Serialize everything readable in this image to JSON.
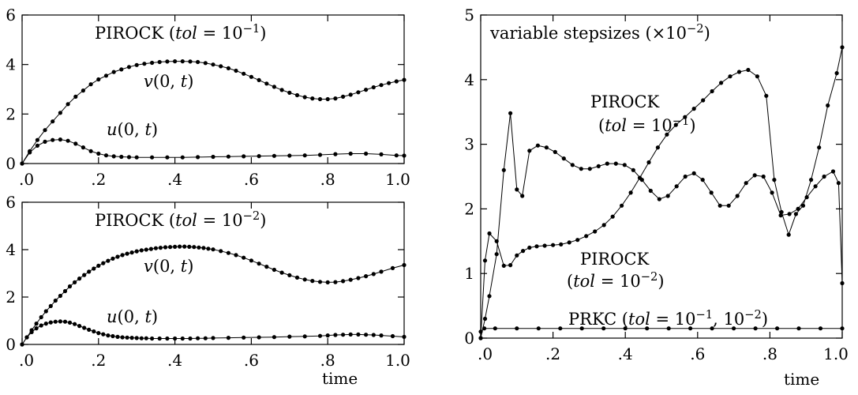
{
  "chart_data": [
    {
      "type": "line",
      "title": "PIROCK (tol = 10^-1)",
      "title_parts": [
        "PIROCK (",
        "tol",
        " = 10",
        "−1",
        ")"
      ],
      "x_ticks": [
        ".0",
        ".2",
        ".4",
        ".6",
        ".8",
        "1.0"
      ],
      "x_tick_values": [
        0,
        0.2,
        0.4,
        0.6,
        0.8,
        1.0
      ],
      "y_ticks": [
        "0",
        "2",
        "4",
        "6"
      ],
      "y_tick_values": [
        0,
        2,
        4,
        6
      ],
      "xlim": [
        0,
        1
      ],
      "ylim": [
        0,
        6
      ],
      "grid": false,
      "series": [
        {
          "name": "v(0, t)",
          "label_parts": [
            "v",
            "(0, ",
            "t",
            ")"
          ],
          "x": [
            0,
            0.02,
            0.04,
            0.06,
            0.08,
            0.1,
            0.12,
            0.14,
            0.16,
            0.18,
            0.2,
            0.22,
            0.24,
            0.26,
            0.28,
            0.3,
            0.32,
            0.34,
            0.36,
            0.38,
            0.4,
            0.42,
            0.44,
            0.46,
            0.48,
            0.5,
            0.52,
            0.54,
            0.56,
            0.58,
            0.6,
            0.62,
            0.64,
            0.66,
            0.68,
            0.7,
            0.72,
            0.74,
            0.76,
            0.78,
            0.8,
            0.82,
            0.84,
            0.86,
            0.88,
            0.9,
            0.92,
            0.94,
            0.96,
            0.98,
            1.0
          ],
          "y": [
            0,
            0.5,
            0.95,
            1.35,
            1.7,
            2.05,
            2.4,
            2.7,
            2.95,
            3.2,
            3.4,
            3.55,
            3.7,
            3.8,
            3.9,
            3.98,
            4.03,
            4.07,
            4.1,
            4.12,
            4.13,
            4.13,
            4.12,
            4.1,
            4.06,
            4.0,
            3.93,
            3.85,
            3.75,
            3.63,
            3.5,
            3.37,
            3.23,
            3.1,
            2.97,
            2.86,
            2.76,
            2.68,
            2.63,
            2.6,
            2.6,
            2.63,
            2.7,
            2.78,
            2.88,
            2.98,
            3.08,
            3.17,
            3.25,
            3.32,
            3.38
          ]
        },
        {
          "name": "u(0, t)",
          "label_parts": [
            "u",
            "(0, ",
            "t",
            ")"
          ],
          "x": [
            0,
            0.02,
            0.04,
            0.06,
            0.08,
            0.1,
            0.12,
            0.14,
            0.16,
            0.18,
            0.2,
            0.22,
            0.24,
            0.26,
            0.28,
            0.3,
            0.34,
            0.38,
            0.42,
            0.46,
            0.5,
            0.54,
            0.58,
            0.62,
            0.66,
            0.7,
            0.74,
            0.78,
            0.82,
            0.86,
            0.9,
            0.94,
            0.98,
            1.0
          ],
          "y": [
            0,
            0.45,
            0.72,
            0.88,
            0.95,
            0.97,
            0.92,
            0.8,
            0.65,
            0.5,
            0.4,
            0.33,
            0.29,
            0.27,
            0.26,
            0.25,
            0.25,
            0.25,
            0.25,
            0.26,
            0.27,
            0.28,
            0.29,
            0.3,
            0.31,
            0.32,
            0.33,
            0.35,
            0.38,
            0.4,
            0.4,
            0.37,
            0.33,
            0.32
          ]
        }
      ]
    },
    {
      "type": "line",
      "title": "PIROCK (tol = 10^-2)",
      "title_parts": [
        "PIROCK (",
        "tol",
        " = 10",
        "−2",
        ")"
      ],
      "xlabel": "time",
      "x_ticks": [
        ".0",
        ".2",
        ".4",
        ".6",
        ".8",
        "1.0"
      ],
      "x_tick_values": [
        0,
        0.2,
        0.4,
        0.6,
        0.8,
        1.0
      ],
      "y_ticks": [
        "0",
        "2",
        "4",
        "6"
      ],
      "y_tick_values": [
        0,
        2,
        4,
        6
      ],
      "xlim": [
        0,
        1
      ],
      "ylim": [
        0,
        6
      ],
      "grid": false,
      "series": [
        {
          "name": "v(0, t)",
          "label_parts": [
            "v",
            "(0, ",
            "t",
            ")"
          ],
          "x": [
            0,
            0.0125,
            0.025,
            0.0375,
            0.05,
            0.0625,
            0.075,
            0.0875,
            0.1,
            0.1125,
            0.125,
            0.1375,
            0.15,
            0.1625,
            0.175,
            0.1875,
            0.2,
            0.2125,
            0.225,
            0.2375,
            0.25,
            0.2625,
            0.275,
            0.2875,
            0.3,
            0.3125,
            0.325,
            0.3375,
            0.35,
            0.3625,
            0.375,
            0.3875,
            0.4,
            0.4125,
            0.425,
            0.4375,
            0.45,
            0.4625,
            0.475,
            0.4875,
            0.5,
            0.52,
            0.54,
            0.56,
            0.58,
            0.6,
            0.62,
            0.64,
            0.66,
            0.68,
            0.7,
            0.72,
            0.74,
            0.76,
            0.78,
            0.8,
            0.82,
            0.84,
            0.86,
            0.88,
            0.9,
            0.92,
            0.94,
            0.97,
            1.0
          ],
          "y": [
            0,
            0.3,
            0.6,
            0.88,
            1.15,
            1.4,
            1.62,
            1.85,
            2.05,
            2.25,
            2.45,
            2.62,
            2.78,
            2.93,
            3.07,
            3.2,
            3.32,
            3.43,
            3.53,
            3.62,
            3.7,
            3.77,
            3.83,
            3.88,
            3.93,
            3.97,
            4.0,
            4.03,
            4.06,
            4.08,
            4.1,
            4.11,
            4.12,
            4.13,
            4.13,
            4.12,
            4.11,
            4.09,
            4.07,
            4.04,
            4.01,
            3.94,
            3.86,
            3.77,
            3.66,
            3.54,
            3.41,
            3.28,
            3.15,
            3.03,
            2.92,
            2.82,
            2.74,
            2.68,
            2.64,
            2.62,
            2.63,
            2.67,
            2.73,
            2.8,
            2.88,
            2.97,
            3.07,
            3.22,
            3.35
          ]
        },
        {
          "name": "u(0, t)",
          "label_parts": [
            "u",
            "(0, ",
            "t",
            ")"
          ],
          "x": [
            0,
            0.0125,
            0.025,
            0.0375,
            0.05,
            0.0625,
            0.075,
            0.0875,
            0.1,
            0.1125,
            0.125,
            0.1375,
            0.15,
            0.1625,
            0.175,
            0.1875,
            0.2,
            0.2125,
            0.225,
            0.2375,
            0.25,
            0.2625,
            0.275,
            0.2875,
            0.3,
            0.3125,
            0.325,
            0.34,
            0.36,
            0.38,
            0.4,
            0.42,
            0.44,
            0.46,
            0.48,
            0.5,
            0.54,
            0.58,
            0.62,
            0.66,
            0.7,
            0.74,
            0.78,
            0.8,
            0.82,
            0.84,
            0.86,
            0.88,
            0.9,
            0.92,
            0.94,
            0.97,
            1.0
          ],
          "y": [
            0,
            0.3,
            0.52,
            0.68,
            0.8,
            0.88,
            0.93,
            0.96,
            0.97,
            0.96,
            0.92,
            0.86,
            0.78,
            0.7,
            0.62,
            0.55,
            0.48,
            0.43,
            0.38,
            0.35,
            0.32,
            0.3,
            0.29,
            0.28,
            0.27,
            0.26,
            0.26,
            0.25,
            0.25,
            0.25,
            0.25,
            0.25,
            0.25,
            0.26,
            0.26,
            0.27,
            0.28,
            0.29,
            0.3,
            0.31,
            0.33,
            0.34,
            0.36,
            0.38,
            0.4,
            0.41,
            0.42,
            0.42,
            0.41,
            0.4,
            0.38,
            0.35,
            0.32
          ]
        }
      ]
    },
    {
      "type": "line",
      "title": "variable stepsizes (×10^-2)",
      "title_parts": [
        "variable stepsizes (×10",
        "−2",
        ")"
      ],
      "xlabel": "time",
      "x_ticks": [
        ".0",
        ".2",
        ".4",
        ".6",
        ".8",
        "1.0"
      ],
      "x_tick_values": [
        0,
        0.2,
        0.4,
        0.6,
        0.8,
        1.0
      ],
      "y_ticks": [
        "0",
        "1",
        "2",
        "3",
        "4",
        "5"
      ],
      "y_tick_values": [
        0,
        1,
        2,
        3,
        4,
        5
      ],
      "xlim": [
        0,
        1
      ],
      "ylim": [
        0,
        5
      ],
      "grid": false,
      "series": [
        {
          "name": "PIROCK (tol = 10^-1)",
          "label_parts": [
            "PIROCK",
            "(",
            "tol",
            " = 10",
            "−1",
            ")"
          ],
          "x": [
            0,
            0.012,
            0.024,
            0.044,
            0.064,
            0.082,
            0.1,
            0.117,
            0.135,
            0.155,
            0.177,
            0.2,
            0.222,
            0.245,
            0.268,
            0.292,
            0.316,
            0.341,
            0.365,
            0.39,
            0.415,
            0.44,
            0.465,
            0.49,
            0.515,
            0.54,
            0.565,
            0.59,
            0.615,
            0.64,
            0.665,
            0.69,
            0.715,
            0.74,
            0.765,
            0.79,
            0.812,
            0.832,
            0.852,
            0.872,
            0.892,
            0.914,
            0.936,
            0.96,
            0.985,
            1.0
          ],
          "y": [
            0,
            1.2,
            1.62,
            1.5,
            1.12,
            1.13,
            1.28,
            1.35,
            1.4,
            1.42,
            1.43,
            1.44,
            1.45,
            1.48,
            1.52,
            1.58,
            1.65,
            1.75,
            1.88,
            2.05,
            2.25,
            2.48,
            2.72,
            2.95,
            3.15,
            3.3,
            3.42,
            3.55,
            3.68,
            3.82,
            3.95,
            4.05,
            4.12,
            4.15,
            4.05,
            3.75,
            2.45,
            1.95,
            1.6,
            1.92,
            2.05,
            2.45,
            2.95,
            3.6,
            4.1,
            4.5
          ]
        },
        {
          "name": "PIROCK (tol = 10^-2)",
          "label_parts": [
            "PIROCK",
            "(",
            "tol",
            " = 10",
            "−2",
            ")"
          ],
          "x": [
            0,
            0.012,
            0.024,
            0.044,
            0.064,
            0.082,
            0.1,
            0.115,
            0.135,
            0.158,
            0.182,
            0.206,
            0.23,
            0.254,
            0.278,
            0.302,
            0.326,
            0.35,
            0.374,
            0.398,
            0.422,
            0.446,
            0.47,
            0.494,
            0.518,
            0.542,
            0.566,
            0.59,
            0.614,
            0.638,
            0.662,
            0.686,
            0.71,
            0.734,
            0.758,
            0.782,
            0.806,
            0.83,
            0.854,
            0.878,
            0.902,
            0.926,
            0.95,
            0.975,
            0.99,
            1.0
          ],
          "y": [
            0,
            0.3,
            0.65,
            1.3,
            2.6,
            3.48,
            2.3,
            2.2,
            2.9,
            2.98,
            2.95,
            2.88,
            2.78,
            2.68,
            2.62,
            2.62,
            2.66,
            2.7,
            2.7,
            2.68,
            2.6,
            2.45,
            2.28,
            2.15,
            2.2,
            2.35,
            2.5,
            2.55,
            2.45,
            2.25,
            2.05,
            2.05,
            2.2,
            2.4,
            2.52,
            2.5,
            2.25,
            1.9,
            1.92,
            2.0,
            2.18,
            2.35,
            2.5,
            2.58,
            2.4,
            0.85
          ]
        },
        {
          "name": "PRKC (tol = 10^-1, 10^-2)",
          "label_parts": [
            "PRKC (",
            "tol",
            " = 10",
            "−1",
            ", 10",
            "−2",
            ")"
          ],
          "x": [
            0,
            0.01,
            0.04,
            0.1,
            0.16,
            0.22,
            0.28,
            0.34,
            0.4,
            0.46,
            0.52,
            0.58,
            0.64,
            0.7,
            0.76,
            0.82,
            0.88,
            0.94,
            1.0
          ],
          "y": [
            0.1,
            0.15,
            0.15,
            0.15,
            0.15,
            0.15,
            0.15,
            0.15,
            0.15,
            0.15,
            0.15,
            0.15,
            0.15,
            0.15,
            0.15,
            0.15,
            0.15,
            0.15,
            0.15
          ]
        }
      ]
    }
  ]
}
